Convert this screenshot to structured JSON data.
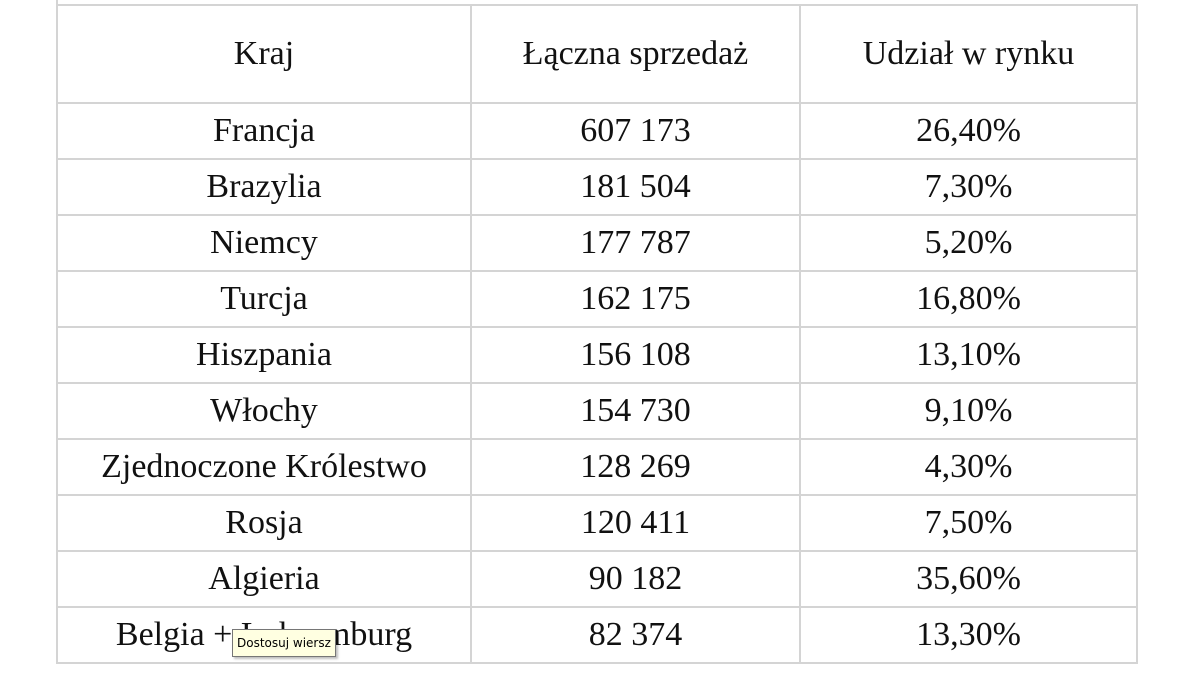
{
  "table": {
    "header": [
      "Kraj",
      "Łączna sprzedaż",
      "Udział w rynku"
    ],
    "rows": [
      [
        "Francja",
        "607 173",
        "26,40%"
      ],
      [
        "Brazylia",
        "181 504",
        "7,30%"
      ],
      [
        "Niemcy",
        "177 787",
        "5,20%"
      ],
      [
        "Turcja",
        "162 175",
        "16,80%"
      ],
      [
        "Hiszpania",
        "156 108",
        "13,10%"
      ],
      [
        "Włochy",
        "154 730",
        "9,10%"
      ],
      [
        "Zjednoczone Królestwo",
        "128 269",
        "4,30%"
      ],
      [
        "Rosja",
        "120 411",
        "7,50%"
      ],
      [
        "Algieria",
        "90 182",
        "35,60%"
      ],
      [
        "Belgia + Luksemburg",
        "82 374",
        "13,30%"
      ]
    ]
  },
  "tooltip": "Dostosuj wiersz"
}
